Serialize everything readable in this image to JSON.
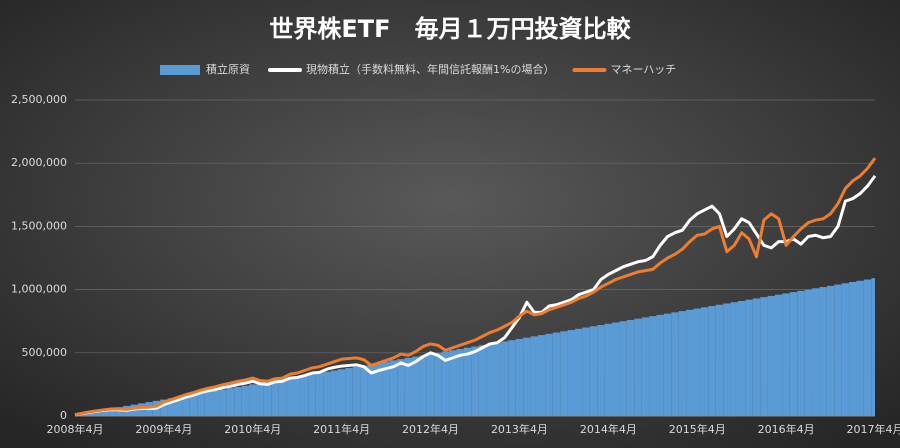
{
  "chart_data": {
    "type": "line",
    "title": "世界株ETF　毎月１万円投資比較",
    "categories": [
      "2008年4月",
      null,
      null,
      null,
      null,
      null,
      null,
      null,
      null,
      null,
      null,
      null,
      "2009年4月",
      null,
      null,
      null,
      null,
      null,
      null,
      null,
      null,
      null,
      null,
      null,
      "2010年4月",
      null,
      null,
      null,
      null,
      null,
      null,
      null,
      null,
      null,
      null,
      null,
      "2011年4月",
      null,
      null,
      null,
      null,
      null,
      null,
      null,
      null,
      null,
      null,
      null,
      "2012年4月",
      null,
      null,
      null,
      null,
      null,
      null,
      null,
      null,
      null,
      null,
      null,
      "2013年4月",
      null,
      null,
      null,
      null,
      null,
      null,
      null,
      null,
      null,
      null,
      null,
      "2014年4月",
      null,
      null,
      null,
      null,
      null,
      null,
      null,
      null,
      null,
      null,
      null,
      "2015年4月",
      null,
      null,
      null,
      null,
      null,
      null,
      null,
      null,
      null,
      null,
      null,
      "2016年4月",
      null,
      null,
      null,
      null,
      null,
      null,
      null,
      null,
      null,
      null,
      null,
      "2017年4月"
    ],
    "series": [
      {
        "name": "積立原資",
        "type": "area",
        "color": "#5b9bd5",
        "values": [
          10000,
          20000,
          30000,
          40000,
          50000,
          60000,
          70000,
          80000,
          90000,
          100000,
          110000,
          120000,
          130000,
          140000,
          150000,
          160000,
          170000,
          180000,
          190000,
          200000,
          210000,
          220000,
          230000,
          240000,
          250000,
          260000,
          270000,
          280000,
          290000,
          300000,
          310000,
          320000,
          330000,
          340000,
          350000,
          360000,
          370000,
          380000,
          390000,
          400000,
          410000,
          420000,
          430000,
          440000,
          450000,
          460000,
          470000,
          480000,
          490000,
          500000,
          510000,
          520000,
          530000,
          540000,
          550000,
          560000,
          570000,
          580000,
          590000,
          600000,
          610000,
          620000,
          630000,
          640000,
          650000,
          660000,
          670000,
          680000,
          690000,
          700000,
          710000,
          720000,
          730000,
          740000,
          750000,
          760000,
          770000,
          780000,
          790000,
          800000,
          810000,
          820000,
          830000,
          840000,
          850000,
          860000,
          870000,
          880000,
          890000,
          900000,
          910000,
          920000,
          930000,
          940000,
          950000,
          960000,
          970000,
          980000,
          990000,
          1000000,
          1010000,
          1020000,
          1030000,
          1040000,
          1050000,
          1060000,
          1070000,
          1080000,
          1090000
        ]
      },
      {
        "name": "現物積立（手数料無料、年間信託報酬1%の場合）",
        "type": "line",
        "color": "#ffffff",
        "values": [
          10000,
          20000,
          30000,
          38000,
          45000,
          50000,
          48000,
          45000,
          55000,
          60000,
          58000,
          62000,
          90000,
          110000,
          130000,
          150000,
          165000,
          185000,
          200000,
          210000,
          225000,
          235000,
          250000,
          260000,
          275000,
          255000,
          250000,
          270000,
          275000,
          300000,
          305000,
          320000,
          340000,
          345000,
          370000,
          385000,
          395000,
          400000,
          405000,
          390000,
          340000,
          360000,
          375000,
          390000,
          420000,
          400000,
          430000,
          470000,
          500000,
          480000,
          440000,
          460000,
          480000,
          490000,
          510000,
          540000,
          570000,
          580000,
          620000,
          700000,
          780000,
          900000,
          820000,
          820000,
          870000,
          880000,
          900000,
          920000,
          960000,
          980000,
          1000000,
          1080000,
          1120000,
          1150000,
          1180000,
          1200000,
          1220000,
          1230000,
          1260000,
          1350000,
          1420000,
          1450000,
          1470000,
          1550000,
          1600000,
          1630000,
          1660000,
          1600000,
          1420000,
          1480000,
          1560000,
          1530000,
          1440000,
          1350000,
          1330000,
          1380000,
          1380000,
          1400000,
          1360000,
          1420000,
          1430000,
          1410000,
          1420000,
          1500000,
          1700000,
          1720000,
          1760000,
          1820000,
          1900000
        ]
      },
      {
        "name": "マネーハッチ",
        "type": "line",
        "color": "#ed7d31",
        "values": [
          10000,
          22000,
          33000,
          42000,
          50000,
          56000,
          55000,
          52000,
          62000,
          68000,
          70000,
          78000,
          110000,
          130000,
          150000,
          170000,
          185000,
          205000,
          220000,
          232000,
          248000,
          260000,
          275000,
          285000,
          300000,
          280000,
          275000,
          295000,
          300000,
          330000,
          340000,
          360000,
          380000,
          390000,
          410000,
          430000,
          450000,
          455000,
          460000,
          445000,
          400000,
          420000,
          440000,
          460000,
          490000,
          480000,
          510000,
          550000,
          570000,
          560000,
          520000,
          540000,
          560000,
          580000,
          600000,
          630000,
          660000,
          680000,
          710000,
          740000,
          790000,
          830000,
          800000,
          810000,
          840000,
          860000,
          880000,
          900000,
          930000,
          950000,
          980000,
          1020000,
          1050000,
          1080000,
          1100000,
          1120000,
          1140000,
          1150000,
          1160000,
          1210000,
          1250000,
          1280000,
          1320000,
          1380000,
          1430000,
          1440000,
          1480000,
          1500000,
          1300000,
          1350000,
          1450000,
          1400000,
          1260000,
          1550000,
          1600000,
          1560000,
          1350000,
          1420000,
          1480000,
          1530000,
          1550000,
          1560000,
          1600000,
          1680000,
          1800000,
          1860000,
          1900000,
          1960000,
          2040000
        ]
      }
    ],
    "ylim": [
      0,
      2500000
    ],
    "yticks": [
      0,
      {
        "value": 500000,
        "label": "500,000"
      },
      {
        "value": 1000000,
        "label": "1,000,000"
      },
      {
        "value": 1500000,
        "label": "1,500,000"
      },
      {
        "value": 2000000,
        "label": "2,000,000"
      },
      {
        "value": 2500000,
        "label": "2,500,000"
      }
    ],
    "grid": true,
    "legend": "top"
  }
}
